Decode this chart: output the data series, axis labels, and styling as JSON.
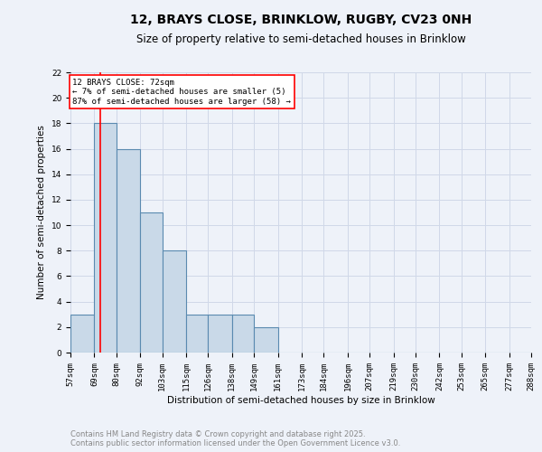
{
  "title1": "12, BRAYS CLOSE, BRINKLOW, RUGBY, CV23 0NH",
  "title2": "Size of property relative to semi-detached houses in Brinklow",
  "xlabel": "Distribution of semi-detached houses by size in Brinklow",
  "ylabel": "Number of semi-detached properties",
  "bin_edges": [
    57,
    69,
    80,
    92,
    103,
    115,
    126,
    138,
    149,
    161,
    173,
    184,
    196,
    207,
    219,
    230,
    242,
    253,
    265,
    277,
    288
  ],
  "counts": [
    3,
    18,
    16,
    11,
    8,
    3,
    3,
    3,
    2,
    0,
    0,
    0,
    0,
    0,
    0,
    0,
    0,
    0,
    0,
    0
  ],
  "bar_color": "#c9d9e8",
  "bar_edge_color": "#5a8ab0",
  "bar_edge_width": 0.8,
  "red_line_x": 72,
  "annotation_text": "12 BRAYS CLOSE: 72sqm\n← 7% of semi-detached houses are smaller (5)\n87% of semi-detached houses are larger (58) →",
  "annotation_box_color": "white",
  "annotation_box_edge": "red",
  "ylim": [
    0,
    22
  ],
  "yticks": [
    0,
    2,
    4,
    6,
    8,
    10,
    12,
    14,
    16,
    18,
    20,
    22
  ],
  "tick_labels": [
    "57sqm",
    "69sqm",
    "80sqm",
    "92sqm",
    "103sqm",
    "115sqm",
    "126sqm",
    "138sqm",
    "149sqm",
    "161sqm",
    "173sqm",
    "184sqm",
    "196sqm",
    "207sqm",
    "219sqm",
    "230sqm",
    "242sqm",
    "253sqm",
    "265sqm",
    "277sqm",
    "288sqm"
  ],
  "grid_color": "#d0d8e8",
  "background_color": "#eef2f9",
  "footer_text": "Contains HM Land Registry data © Crown copyright and database right 2025.\nContains public sector information licensed under the Open Government Licence v3.0.",
  "title1_fontsize": 10,
  "title2_fontsize": 8.5,
  "axis_label_fontsize": 7.5,
  "tick_fontsize": 6.5,
  "footer_fontsize": 6.0,
  "annotation_fontsize": 6.5
}
